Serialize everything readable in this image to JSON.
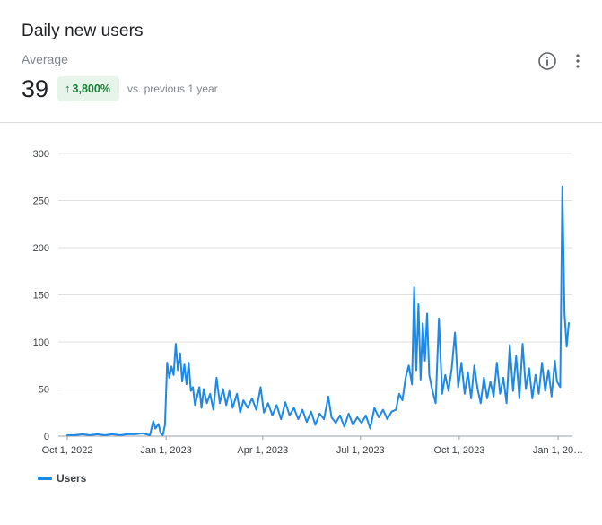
{
  "card": {
    "title": "Daily new users",
    "metric_label": "Average",
    "metric_value": "39",
    "change_arrow": "↑",
    "change_value": "3,800%",
    "comparison": "vs. previous 1 year",
    "info_icon": "info-icon",
    "more_icon": "more-vert-icon"
  },
  "colors": {
    "series": "#1e88e5",
    "badge_bg": "#e6f4ea",
    "badge_text": "#188038",
    "grid": "#e0e0e0"
  },
  "chart_data": {
    "type": "line",
    "title": "",
    "xlabel": "",
    "ylabel": "",
    "ylim": [
      0,
      300
    ],
    "yticks": [
      0,
      50,
      100,
      150,
      200,
      250,
      300
    ],
    "grid": true,
    "legend_position": "bottom-left",
    "x_start": "2022-10-01",
    "x_ticks": [
      {
        "date": "2022-10-01",
        "label": "Oct 1, 2022"
      },
      {
        "date": "2023-01-01",
        "label": "Jan 1, 2023"
      },
      {
        "date": "2023-04-01",
        "label": "Apr 1, 2023"
      },
      {
        "date": "2023-07-01",
        "label": "Jul 1, 2023"
      },
      {
        "date": "2023-10-01",
        "label": "Oct 1, 2023"
      },
      {
        "date": "2024-01-01",
        "label": "Jan 1, 20…"
      }
    ],
    "series": [
      {
        "name": "Users",
        "points": [
          [
            "2022-10-01",
            1
          ],
          [
            "2022-10-08",
            1
          ],
          [
            "2022-10-15",
            2
          ],
          [
            "2022-10-22",
            1
          ],
          [
            "2022-10-29",
            2
          ],
          [
            "2022-11-05",
            1
          ],
          [
            "2022-11-12",
            2
          ],
          [
            "2022-11-19",
            1
          ],
          [
            "2022-11-26",
            2
          ],
          [
            "2022-12-03",
            2
          ],
          [
            "2022-12-10",
            3
          ],
          [
            "2022-12-17",
            1
          ],
          [
            "2022-12-20",
            16
          ],
          [
            "2022-12-22",
            8
          ],
          [
            "2022-12-25",
            13
          ],
          [
            "2022-12-27",
            3
          ],
          [
            "2022-12-29",
            1
          ],
          [
            "2022-12-31",
            12
          ],
          [
            "2023-01-02",
            78
          ],
          [
            "2023-01-04",
            62
          ],
          [
            "2023-01-06",
            74
          ],
          [
            "2023-01-08",
            65
          ],
          [
            "2023-01-10",
            98
          ],
          [
            "2023-01-12",
            70
          ],
          [
            "2023-01-14",
            88
          ],
          [
            "2023-01-16",
            58
          ],
          [
            "2023-01-18",
            76
          ],
          [
            "2023-01-20",
            55
          ],
          [
            "2023-01-22",
            78
          ],
          [
            "2023-01-24",
            48
          ],
          [
            "2023-01-26",
            52
          ],
          [
            "2023-01-28",
            33
          ],
          [
            "2023-02-01",
            52
          ],
          [
            "2023-02-03",
            30
          ],
          [
            "2023-02-05",
            50
          ],
          [
            "2023-02-08",
            35
          ],
          [
            "2023-02-11",
            45
          ],
          [
            "2023-02-14",
            28
          ],
          [
            "2023-02-17",
            62
          ],
          [
            "2023-02-20",
            35
          ],
          [
            "2023-02-23",
            50
          ],
          [
            "2023-02-26",
            33
          ],
          [
            "2023-03-01",
            48
          ],
          [
            "2023-03-04",
            30
          ],
          [
            "2023-03-08",
            45
          ],
          [
            "2023-03-11",
            25
          ],
          [
            "2023-03-14",
            38
          ],
          [
            "2023-03-18",
            30
          ],
          [
            "2023-03-22",
            40
          ],
          [
            "2023-03-26",
            28
          ],
          [
            "2023-03-30",
            52
          ],
          [
            "2023-04-02",
            25
          ],
          [
            "2023-04-06",
            35
          ],
          [
            "2023-04-10",
            22
          ],
          [
            "2023-04-14",
            33
          ],
          [
            "2023-04-18",
            18
          ],
          [
            "2023-04-22",
            36
          ],
          [
            "2023-04-26",
            22
          ],
          [
            "2023-04-30",
            30
          ],
          [
            "2023-05-04",
            18
          ],
          [
            "2023-05-08",
            28
          ],
          [
            "2023-05-12",
            15
          ],
          [
            "2023-05-16",
            26
          ],
          [
            "2023-05-20",
            12
          ],
          [
            "2023-05-24",
            24
          ],
          [
            "2023-05-28",
            18
          ],
          [
            "2023-06-01",
            42
          ],
          [
            "2023-06-04",
            20
          ],
          [
            "2023-06-08",
            14
          ],
          [
            "2023-06-12",
            22
          ],
          [
            "2023-06-16",
            10
          ],
          [
            "2023-06-20",
            24
          ],
          [
            "2023-06-24",
            12
          ],
          [
            "2023-06-28",
            20
          ],
          [
            "2023-07-02",
            14
          ],
          [
            "2023-07-06",
            22
          ],
          [
            "2023-07-10",
            8
          ],
          [
            "2023-07-14",
            30
          ],
          [
            "2023-07-18",
            20
          ],
          [
            "2023-07-22",
            28
          ],
          [
            "2023-07-26",
            18
          ],
          [
            "2023-07-30",
            26
          ],
          [
            "2023-08-03",
            28
          ],
          [
            "2023-08-06",
            45
          ],
          [
            "2023-08-09",
            38
          ],
          [
            "2023-08-12",
            62
          ],
          [
            "2023-08-15",
            75
          ],
          [
            "2023-08-18",
            55
          ],
          [
            "2023-08-20",
            158
          ],
          [
            "2023-08-22",
            70
          ],
          [
            "2023-08-24",
            140
          ],
          [
            "2023-08-26",
            60
          ],
          [
            "2023-08-28",
            120
          ],
          [
            "2023-08-30",
            80
          ],
          [
            "2023-09-01",
            130
          ],
          [
            "2023-09-03",
            65
          ],
          [
            "2023-09-06",
            48
          ],
          [
            "2023-09-09",
            35
          ],
          [
            "2023-09-12",
            125
          ],
          [
            "2023-09-15",
            45
          ],
          [
            "2023-09-18",
            65
          ],
          [
            "2023-09-21",
            48
          ],
          [
            "2023-09-24",
            72
          ],
          [
            "2023-09-27",
            110
          ],
          [
            "2023-09-30",
            52
          ],
          [
            "2023-10-03",
            78
          ],
          [
            "2023-10-06",
            45
          ],
          [
            "2023-10-09",
            68
          ],
          [
            "2023-10-12",
            40
          ],
          [
            "2023-10-15",
            75
          ],
          [
            "2023-10-18",
            50
          ],
          [
            "2023-10-21",
            35
          ],
          [
            "2023-10-24",
            62
          ],
          [
            "2023-10-27",
            40
          ],
          [
            "2023-10-30",
            58
          ],
          [
            "2023-11-02",
            42
          ],
          [
            "2023-11-05",
            78
          ],
          [
            "2023-11-08",
            45
          ],
          [
            "2023-11-11",
            62
          ],
          [
            "2023-11-14",
            35
          ],
          [
            "2023-11-17",
            97
          ],
          [
            "2023-11-20",
            48
          ],
          [
            "2023-11-23",
            85
          ],
          [
            "2023-11-26",
            40
          ],
          [
            "2023-11-29",
            98
          ],
          [
            "2023-12-02",
            50
          ],
          [
            "2023-12-05",
            72
          ],
          [
            "2023-12-08",
            40
          ],
          [
            "2023-12-11",
            65
          ],
          [
            "2023-12-14",
            45
          ],
          [
            "2023-12-17",
            78
          ],
          [
            "2023-12-20",
            48
          ],
          [
            "2023-12-23",
            70
          ],
          [
            "2023-12-26",
            42
          ],
          [
            "2023-12-29",
            80
          ],
          [
            "2023-12-31",
            58
          ],
          [
            "2024-01-03",
            52
          ],
          [
            "2024-01-05",
            265
          ],
          [
            "2024-01-07",
            130
          ],
          [
            "2024-01-09",
            95
          ],
          [
            "2024-01-11",
            120
          ]
        ]
      }
    ]
  },
  "legend": {
    "label": "Users"
  }
}
